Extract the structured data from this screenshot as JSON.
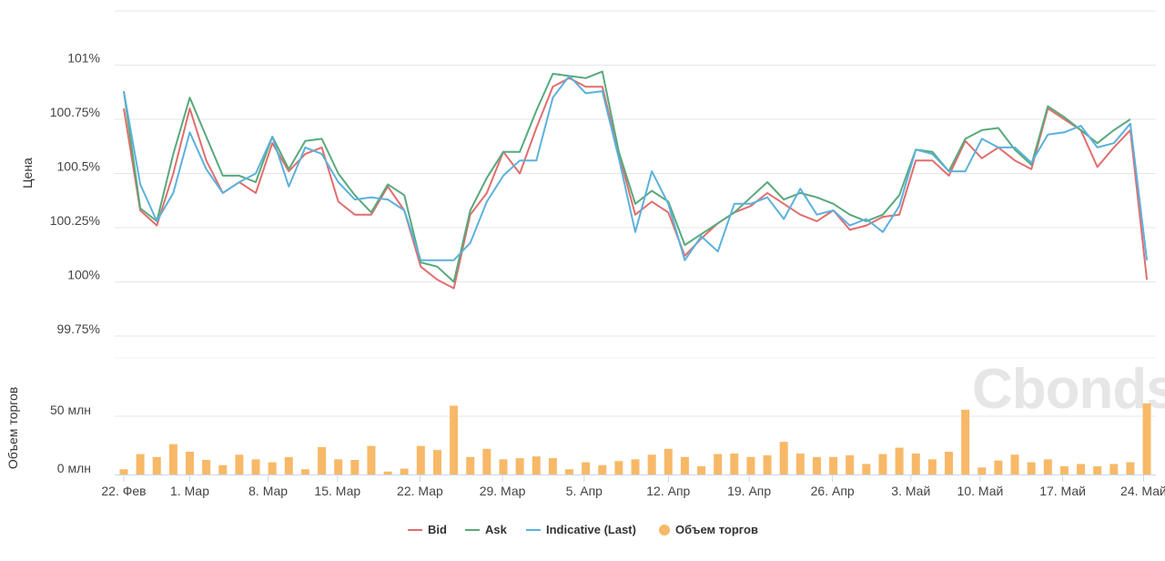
{
  "chart_data": {
    "type": "line",
    "y_axis_title": "Цена",
    "y_ticks": [
      {
        "value": 101,
        "label": "101%"
      },
      {
        "value": 100.75,
        "label": "100.75%"
      },
      {
        "value": 100.5,
        "label": "100.5%"
      },
      {
        "value": 100.25,
        "label": "100.25%"
      },
      {
        "value": 100,
        "label": "100%"
      },
      {
        "value": 99.75,
        "label": "99.75%"
      }
    ],
    "ylim": [
      99.75,
      101.25
    ],
    "volume_axis_title": "Объем торгов",
    "volume_ticks": [
      {
        "value": 50,
        "label": "50 млн"
      },
      {
        "value": 0,
        "label": "0 млн"
      }
    ],
    "volume_ylim": [
      0,
      100
    ],
    "x_ticks": [
      {
        "index": 0,
        "label": "22. Фев"
      },
      {
        "index": 4,
        "label": "1. Мар"
      },
      {
        "index": 8.75,
        "label": "8. Мар"
      },
      {
        "index": 12.95,
        "label": "15. Мар"
      },
      {
        "index": 17.95,
        "label": "22. Мар"
      },
      {
        "index": 22.95,
        "label": "29. Мар"
      },
      {
        "index": 27.9,
        "label": "5. Апр"
      },
      {
        "index": 33,
        "label": "12. Апр"
      },
      {
        "index": 37.9,
        "label": "19. Апр"
      },
      {
        "index": 42.95,
        "label": "26. Апр"
      },
      {
        "index": 47.7,
        "label": "3. Май"
      },
      {
        "index": 51.9,
        "label": "10. Май"
      },
      {
        "index": 56.9,
        "label": "17. Май"
      },
      {
        "index": 61.8,
        "label": "24. Май"
      }
    ],
    "series": [
      {
        "name": "Bid",
        "color": "#e26d6d",
        "values": [
          100.8,
          100.33,
          100.26,
          100.5,
          100.8,
          100.56,
          100.41,
          100.46,
          100.41,
          100.64,
          100.51,
          100.59,
          100.62,
          100.37,
          100.31,
          100.31,
          100.44,
          100.33,
          100.07,
          100.01,
          99.97,
          100.31,
          100.41,
          100.6,
          100.5,
          100.71,
          100.9,
          100.94,
          100.9,
          100.9,
          100.59,
          100.31,
          100.37,
          100.32,
          100.12,
          100.2,
          100.27,
          100.32,
          100.35,
          100.41,
          100.36,
          100.31,
          100.28,
          100.33,
          100.24,
          100.26,
          100.3,
          100.31,
          100.56,
          100.56,
          100.49,
          100.65,
          100.57,
          100.62,
          100.56,
          100.52,
          100.8,
          100.75,
          100.7,
          100.53,
          100.62,
          100.7,
          100.01
        ]
      },
      {
        "name": "Ask",
        "color": "#58a97a",
        "values": [
          100.88,
          100.34,
          100.28,
          100.59,
          100.85,
          100.67,
          100.49,
          100.49,
          100.46,
          100.67,
          100.52,
          100.65,
          100.66,
          100.5,
          100.4,
          100.32,
          100.45,
          100.4,
          100.09,
          100.07,
          100.0,
          100.33,
          100.48,
          100.6,
          100.6,
          100.79,
          100.96,
          100.95,
          100.94,
          100.97,
          100.6,
          100.36,
          100.42,
          100.37,
          100.17,
          100.22,
          100.27,
          100.32,
          100.39,
          100.46,
          100.38,
          100.41,
          100.39,
          100.36,
          100.31,
          100.28,
          100.31,
          100.4,
          100.61,
          100.6,
          100.51,
          100.66,
          100.7,
          100.71,
          100.61,
          100.54,
          100.81,
          100.76,
          100.7,
          100.64,
          100.7,
          100.75,
          null
        ]
      },
      {
        "name": "Indicative (Last)",
        "color": "#5cb1dc",
        "values": [
          100.88,
          100.45,
          100.28,
          100.41,
          100.69,
          100.52,
          100.41,
          100.46,
          100.5,
          100.67,
          100.44,
          100.62,
          100.59,
          100.46,
          100.38,
          100.39,
          100.38,
          100.33,
          100.1,
          100.1,
          100.1,
          100.18,
          100.37,
          100.49,
          100.56,
          100.56,
          100.85,
          100.95,
          100.87,
          100.88,
          100.57,
          100.23,
          100.51,
          100.36,
          100.1,
          100.21,
          100.14,
          100.36,
          100.36,
          100.39,
          100.29,
          100.43,
          100.31,
          100.33,
          100.26,
          100.29,
          100.23,
          100.35,
          100.61,
          100.59,
          100.51,
          100.51,
          100.66,
          100.62,
          100.62,
          100.55,
          100.68,
          100.69,
          100.72,
          100.62,
          100.64,
          100.73,
          100.1
        ]
      }
    ],
    "volume": {
      "name": "Объем торгов",
      "color": "#f7b968",
      "unit": "млн",
      "values": [
        4.5,
        17.5,
        15,
        26,
        19.5,
        12.5,
        8,
        17,
        13,
        10.5,
        15,
        4.5,
        23.5,
        13,
        12.5,
        24.5,
        2.5,
        5,
        24.5,
        21,
        59,
        15,
        22,
        13,
        14,
        15.5,
        14,
        4.5,
        10.5,
        8,
        11.5,
        13,
        17,
        22,
        15,
        7,
        17.5,
        18,
        15,
        16.5,
        28,
        18,
        15,
        15,
        16.5,
        9,
        17.5,
        23,
        18,
        13,
        19.5,
        55.5,
        6,
        12,
        17,
        10.5,
        13,
        7,
        9,
        7,
        9,
        10.5,
        61
      ]
    },
    "legend_position": "bottom-center",
    "grid": true,
    "watermark": "Cbonds"
  }
}
